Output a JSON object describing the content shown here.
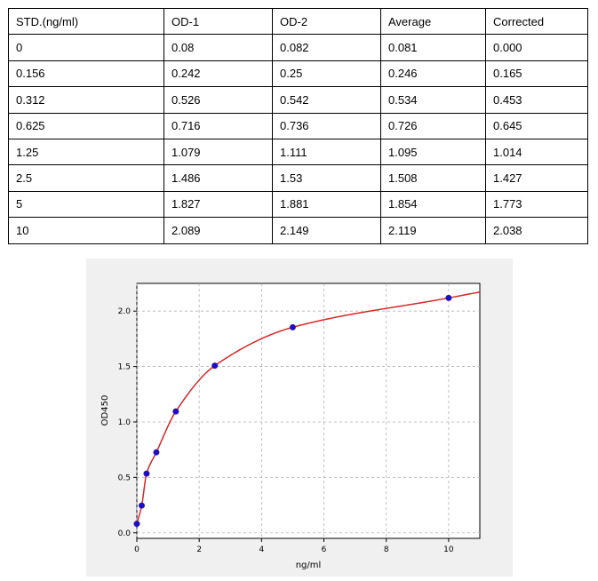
{
  "table": {
    "headers": [
      "STD.(ng/ml)",
      "OD-1",
      "OD-2",
      "Average",
      "Corrected"
    ],
    "rows": [
      [
        "0",
        "0.08",
        "0.082",
        "0.081",
        "0.000"
      ],
      [
        "0.156",
        "0.242",
        "0.25",
        "0.246",
        "0.165"
      ],
      [
        "0.312",
        "0.526",
        "0.542",
        "0.534",
        "0.453"
      ],
      [
        "0.625",
        "0.716",
        "0.736",
        "0.726",
        "0.645"
      ],
      [
        "1.25",
        "1.079",
        "1.111",
        "1.095",
        "1.014"
      ],
      [
        "2.5",
        "1.486",
        "1.53",
        "1.508",
        "1.427"
      ],
      [
        "5",
        "1.827",
        "1.881",
        "1.854",
        "1.773"
      ],
      [
        "10",
        "2.089",
        "2.149",
        "2.119",
        "2.038"
      ]
    ]
  },
  "chart_data": {
    "type": "scatter",
    "xlabel": "ng/ml",
    "ylabel": "OD450",
    "xlim": [
      0,
      11
    ],
    "ylim": [
      -0.05,
      2.25
    ],
    "xticks": [
      0,
      2,
      4,
      6,
      8,
      10
    ],
    "yticks": [
      0.0,
      0.5,
      1.0,
      1.5,
      2.0
    ],
    "xtick_labels": [
      "0",
      "2",
      "4",
      "6",
      "8",
      "10"
    ],
    "ytick_labels": [
      "0.0",
      "0.5",
      "1.0",
      "1.5",
      "2.0"
    ],
    "grid": true,
    "series": [
      {
        "x": [
          0,
          0.156,
          0.312,
          0.625,
          1.25,
          2.5,
          5,
          10
        ],
        "y": [
          0.081,
          0.246,
          0.534,
          0.726,
          1.095,
          1.508,
          1.854,
          2.119
        ],
        "marker_color": "#1a0dcc",
        "fit_line_color": "#d62728"
      }
    ]
  }
}
